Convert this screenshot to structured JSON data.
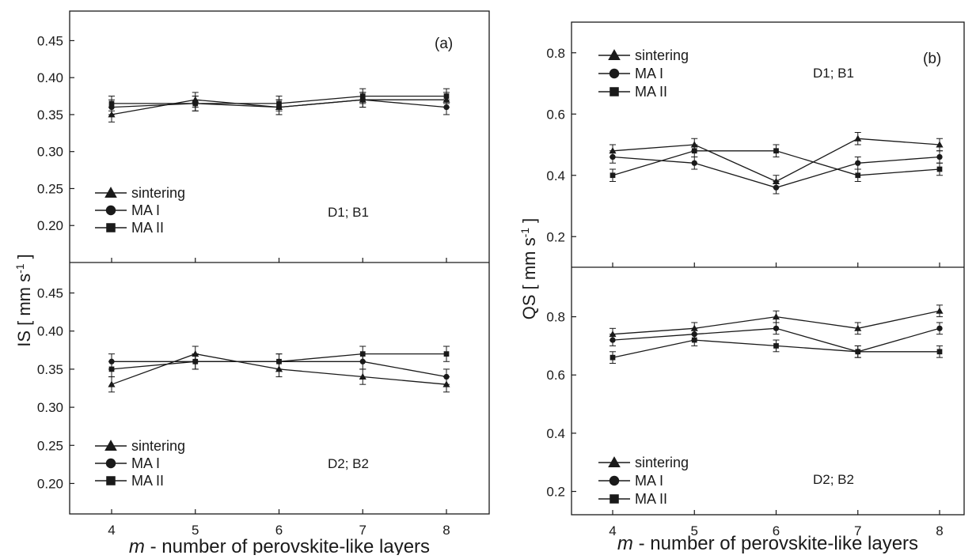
{
  "figure": {
    "xlabel_italic": "m",
    "xlabel_rest": " - number of perovskite-like layers",
    "panels": [
      {
        "id": "a",
        "label": "(a)",
        "ylabel": "IS [ mm s",
        "ylabel_sup": "-1",
        "ylabel_close": " ]"
      },
      {
        "id": "b",
        "label": "(b)",
        "ylabel": "QS [ mm s",
        "ylabel_sup": "-1",
        "ylabel_close": " ]"
      }
    ]
  },
  "chart_data": [
    {
      "type": "line",
      "panel": "a",
      "subplot": "top",
      "annotation": "D1; B1",
      "x": [
        4,
        5,
        6,
        7,
        8
      ],
      "xticks": [
        "4",
        "5",
        "6",
        "7",
        "8"
      ],
      "xlim": [
        3.5,
        8.5
      ],
      "ylim": [
        0.15,
        0.49
      ],
      "yticks": [
        "0.20",
        "0.25",
        "0.30",
        "0.35",
        "0.40",
        "0.45"
      ],
      "ytick_values": [
        0.2,
        0.25,
        0.3,
        0.35,
        0.4,
        0.45
      ],
      "error": 0.01,
      "series": [
        {
          "name": "sintering",
          "marker": "triangle",
          "values": [
            0.35,
            0.37,
            0.36,
            0.37,
            0.37
          ]
        },
        {
          "name": "MA I",
          "marker": "circle",
          "values": [
            0.36,
            0.365,
            0.36,
            0.37,
            0.36
          ]
        },
        {
          "name": "MA II",
          "marker": "square",
          "values": [
            0.365,
            0.365,
            0.365,
            0.375,
            0.375
          ]
        }
      ]
    },
    {
      "type": "line",
      "panel": "a",
      "subplot": "bottom",
      "annotation": "D2; B2",
      "x": [
        4,
        5,
        6,
        7,
        8
      ],
      "xticks": [
        "4",
        "5",
        "6",
        "7",
        "8"
      ],
      "xlim": [
        3.5,
        8.5
      ],
      "ylim": [
        0.16,
        0.49
      ],
      "yticks": [
        "0.20",
        "0.25",
        "0.30",
        "0.35",
        "0.40",
        "0.45"
      ],
      "ytick_values": [
        0.2,
        0.25,
        0.3,
        0.35,
        0.4,
        0.45
      ],
      "error": 0.01,
      "series": [
        {
          "name": "sintering",
          "marker": "triangle",
          "values": [
            0.33,
            0.37,
            0.35,
            0.34,
            0.33
          ]
        },
        {
          "name": "MA I",
          "marker": "circle",
          "values": [
            0.36,
            0.36,
            0.36,
            0.36,
            0.34
          ]
        },
        {
          "name": "MA II",
          "marker": "square",
          "values": [
            0.35,
            0.36,
            0.36,
            0.37,
            0.37
          ]
        }
      ]
    },
    {
      "type": "line",
      "panel": "b",
      "subplot": "top",
      "annotation": "D1; B1",
      "x": [
        4,
        5,
        6,
        7,
        8
      ],
      "xticks": [
        "4",
        "5",
        "6",
        "7",
        "8"
      ],
      "xlim": [
        3.5,
        8.5
      ],
      "ylim": [
        0.1,
        0.9
      ],
      "yticks": [
        "0.2",
        "0.4",
        "0.6",
        "0.8"
      ],
      "ytick_values": [
        0.2,
        0.4,
        0.6,
        0.8
      ],
      "error": 0.02,
      "series": [
        {
          "name": "sintering",
          "marker": "triangle",
          "values": [
            0.48,
            0.5,
            0.38,
            0.52,
            0.5
          ]
        },
        {
          "name": "MA I",
          "marker": "circle",
          "values": [
            0.46,
            0.44,
            0.36,
            0.44,
            0.46
          ]
        },
        {
          "name": "MA II",
          "marker": "square",
          "values": [
            0.4,
            0.48,
            0.48,
            0.4,
            0.42
          ]
        }
      ]
    },
    {
      "type": "line",
      "panel": "b",
      "subplot": "bottom",
      "annotation": "D2; B2",
      "x": [
        4,
        5,
        6,
        7,
        8
      ],
      "xticks": [
        "4",
        "5",
        "6",
        "7",
        "8"
      ],
      "xlim": [
        3.5,
        8.5
      ],
      "ylim": [
        0.12,
        0.97
      ],
      "yticks": [
        "0.2",
        "0.4",
        "0.6",
        "0.8"
      ],
      "ytick_values": [
        0.2,
        0.4,
        0.6,
        0.8
      ],
      "error": 0.02,
      "series": [
        {
          "name": "sintering",
          "marker": "triangle",
          "values": [
            0.74,
            0.76,
            0.8,
            0.76,
            0.82
          ]
        },
        {
          "name": "MA I",
          "marker": "circle",
          "values": [
            0.72,
            0.74,
            0.76,
            0.68,
            0.76
          ]
        },
        {
          "name": "MA II",
          "marker": "square",
          "values": [
            0.66,
            0.72,
            0.7,
            0.68,
            0.68
          ]
        }
      ]
    }
  ]
}
